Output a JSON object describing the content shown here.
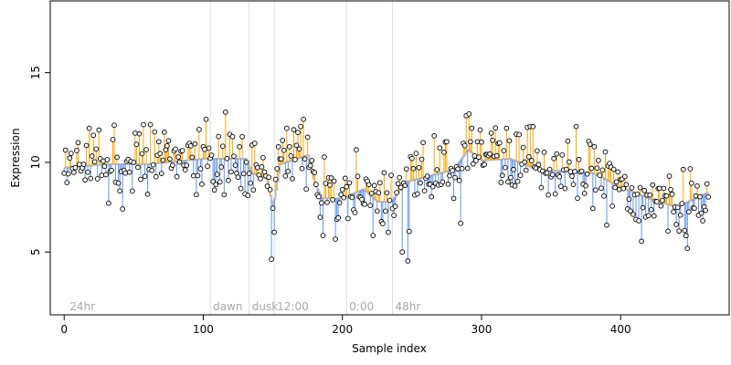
{
  "chart_data": {
    "type": "scatter",
    "title": "",
    "xlabel": "Sample index",
    "ylabel": "Expression",
    "xlim": [
      -10,
      478
    ],
    "ylim": [
      1.5,
      19.0
    ],
    "xticks": [
      0,
      100,
      200,
      300,
      400
    ],
    "yticks": [
      5,
      10,
      15
    ],
    "grid": false,
    "legend": "none",
    "colors": {
      "above": "#FFA500",
      "below": "#6495ED",
      "trend": "#BEBEBE",
      "phase_line": "#DDDDDD",
      "phase_label": "#A8A8A8",
      "point_edge": "#000000"
    },
    "phase_markers": [
      {
        "x": 105,
        "label": "dawn"
      },
      {
        "x": 133,
        "label": "dusk"
      },
      {
        "x": 151,
        "label": "12:00"
      },
      {
        "x": 203,
        "label": "0:00"
      },
      {
        "x": 236,
        "label": "48hr"
      }
    ],
    "phase_start_label": {
      "x": 2,
      "label": "24hr"
    },
    "label_y": 2.0,
    "series": [
      {
        "name": "",
        "baseline_knots": [
          [
            0,
            9.7
          ],
          [
            30,
            9.9
          ],
          [
            60,
            9.9
          ],
          [
            100,
            10.2
          ],
          [
            130,
            10.2
          ],
          [
            135,
            9.4
          ],
          [
            145,
            9.1
          ],
          [
            150,
            7.5
          ],
          [
            155,
            9.9
          ],
          [
            175,
            10.4
          ],
          [
            180,
            8.8
          ],
          [
            185,
            8.0
          ],
          [
            200,
            8.0
          ],
          [
            215,
            8.5
          ],
          [
            225,
            7.8
          ],
          [
            235,
            7.8
          ],
          [
            245,
            8.9
          ],
          [
            260,
            9.2
          ],
          [
            280,
            9.6
          ],
          [
            290,
            10.7
          ],
          [
            300,
            10.1
          ],
          [
            320,
            10.2
          ],
          [
            340,
            9.6
          ],
          [
            380,
            9.4
          ],
          [
            400,
            8.6
          ],
          [
            420,
            8.0
          ],
          [
            440,
            7.5
          ],
          [
            462,
            8.3
          ]
        ],
        "seed": 20240517,
        "n_points": 464,
        "noise_sd": 0.9,
        "highlight_points": [
          [
            5,
            10.5
          ],
          [
            10,
            11.1
          ],
          [
            18,
            11.9
          ],
          [
            25,
            11.8
          ],
          [
            40,
            8.4
          ],
          [
            42,
            7.4
          ],
          [
            52,
            11.0
          ],
          [
            57,
            12.1
          ],
          [
            62,
            12.1
          ],
          [
            75,
            11.2
          ],
          [
            95,
            8.2
          ],
          [
            149,
            4.6
          ],
          [
            151,
            6.1
          ],
          [
            160,
            11.9
          ],
          [
            170,
            12.0
          ],
          [
            172,
            12.4
          ],
          [
            175,
            11.4
          ],
          [
            210,
            10.7
          ],
          [
            228,
            6.7
          ],
          [
            243,
            5.0
          ],
          [
            247,
            4.5
          ],
          [
            253,
            10.5
          ],
          [
            258,
            11.1
          ],
          [
            270,
            10.8
          ],
          [
            285,
            6.6
          ],
          [
            289,
            12.6
          ],
          [
            291,
            12.7
          ],
          [
            293,
            11.9
          ],
          [
            318,
            11.9
          ],
          [
            320,
            11.2
          ],
          [
            335,
            12.0
          ],
          [
            368,
            12.0
          ],
          [
            390,
            6.5
          ],
          [
            415,
            5.6
          ],
          [
            445,
            9.6
          ],
          [
            446,
            6.2
          ],
          [
            448,
            5.2
          ],
          [
            462,
            8.8
          ]
        ]
      }
    ]
  }
}
